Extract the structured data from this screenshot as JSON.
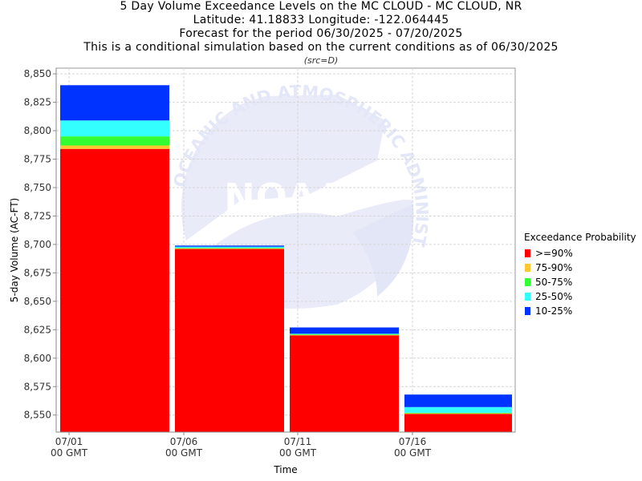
{
  "title_lines": [
    "5 Day Volume Exceedance Levels on the MC CLOUD - MC CLOUD, NR",
    "Latitude: 41.18833 Longitude: -122.064445",
    "Forecast for the period 06/30/2025 - 07/20/2025",
    "This is a conditional simulation based on the current conditions as of 06/30/2025"
  ],
  "subtitle": "(src=D)",
  "watermark": {
    "text": "NOAA",
    "ring_text": "OCEANIC AND ATMOSPHERIC ADMINISTRATION"
  },
  "chart_data": {
    "type": "bar",
    "stacked": true,
    "xlabel": "Time",
    "ylabel": "5-day Volume (AC-FT)",
    "ylim": [
      8535,
      8855
    ],
    "yticks": [
      8550,
      8575,
      8600,
      8625,
      8650,
      8675,
      8700,
      8725,
      8750,
      8775,
      8800,
      8825,
      8850
    ],
    "grid": true,
    "legend_title": "Exceedance Probability",
    "legend_position": "right",
    "x_ticks": [
      {
        "line1": "07/01",
        "line2": "00 GMT"
      },
      {
        "line1": "07/06",
        "line2": "00 GMT"
      },
      {
        "line1": "07/11",
        "line2": "00 GMT"
      },
      {
        "line1": "07/16",
        "line2": "00 GMT"
      }
    ],
    "bars": [
      {
        "start": "07/01",
        "end": "07/06",
        "levels": [
          8784,
          8787,
          8795,
          8809,
          8840
        ]
      },
      {
        "start": "07/06",
        "end": "07/11",
        "levels": [
          8696,
          8696.5,
          8697,
          8698,
          8699
        ]
      },
      {
        "start": "07/11",
        "end": "07/16",
        "levels": [
          8620,
          8620.5,
          8621,
          8621.5,
          8627
        ]
      },
      {
        "start": "07/16",
        "end": "07/21",
        "levels": [
          8551,
          8551.5,
          8552,
          8557,
          8568
        ]
      }
    ],
    "series": [
      {
        "name": ">=90%",
        "color": "#ff0000"
      },
      {
        "name": "75-90%",
        "color": "#ffc830"
      },
      {
        "name": "50-75%",
        "color": "#33ff33"
      },
      {
        "name": "25-50%",
        "color": "#33ffff"
      },
      {
        "name": "10-25%",
        "color": "#0033ff"
      }
    ]
  }
}
